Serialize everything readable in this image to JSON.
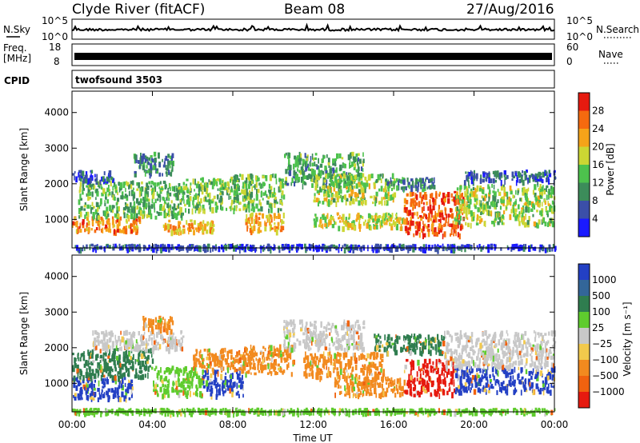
{
  "header": {
    "site": "Clyde River (fitACF)",
    "beam": "Beam 08",
    "date": "27/Aug/2016"
  },
  "noise_panel": {
    "left_label": "N.Sky",
    "right_label": "N.Search",
    "ytick_top": "10^5",
    "ytick_bottom": "10^0"
  },
  "freq_panel": {
    "label_line1": "Freq.",
    "label_line2": "[MHz]",
    "ytick_top": "18",
    "ytick_bottom": "8",
    "right_label": "Nave",
    "rtick_top": "60",
    "rtick_bottom": "0"
  },
  "cpid_panel": {
    "label": "CPID",
    "value": "twofsound 3503"
  },
  "colors": {
    "power_scale": [
      "#1a1aff",
      "#3b4fa8",
      "#3c8c5a",
      "#4dc24d",
      "#ccd633",
      "#f5a319",
      "#f56a0f",
      "#e61a0f"
    ],
    "velocity_scale": [
      "#2340c4",
      "#336699",
      "#2f7d4f",
      "#5fcc2e",
      "#c8c8c8",
      "#f2c94c",
      "#f28a1f",
      "#f0620f",
      "#e61a0f"
    ]
  },
  "chart_data": [
    {
      "type": "heatmap",
      "title": "",
      "ylabel": "Slant Range [km]",
      "ylim": [
        200,
        4600
      ],
      "yticks": [
        "1000",
        "2000",
        "3000",
        "4000"
      ],
      "xlim_hours": [
        0,
        24
      ],
      "colorbar_label": "Power [dB]",
      "colorbar_ticks": [
        "4",
        "8",
        "12",
        "16",
        "20",
        "24",
        "28"
      ],
      "colorbar_range": [
        0,
        32
      ],
      "bands": [
        {
          "t0": 0.0,
          "t1": 3.4,
          "r0": 700,
          "r1": 1100,
          "value": 24
        },
        {
          "t0": 0.3,
          "t1": 5.5,
          "r0": 1100,
          "r1": 2100,
          "value": 13
        },
        {
          "t0": 0.0,
          "t1": 2.0,
          "r0": 2100,
          "r1": 2400,
          "value": 6
        },
        {
          "t0": 3.0,
          "t1": 5.0,
          "r0": 2300,
          "r1": 2900,
          "value": 9
        },
        {
          "t0": 5.5,
          "t1": 8.2,
          "r0": 1300,
          "r1": 2200,
          "value": 15
        },
        {
          "t0": 4.5,
          "t1": 7.0,
          "r0": 650,
          "r1": 1000,
          "value": 22
        },
        {
          "t0": 8.6,
          "t1": 10.5,
          "r0": 700,
          "r1": 1200,
          "value": 22
        },
        {
          "t0": 8.0,
          "t1": 10.5,
          "r0": 1300,
          "r1": 2300,
          "value": 14
        },
        {
          "t0": 10.5,
          "t1": 14.5,
          "r0": 2000,
          "r1": 2900,
          "value": 12
        },
        {
          "t0": 12.0,
          "t1": 16.0,
          "r0": 1500,
          "r1": 2300,
          "value": 16
        },
        {
          "t0": 12.0,
          "t1": 16.5,
          "r0": 800,
          "r1": 1200,
          "value": 18
        },
        {
          "t0": 16.5,
          "t1": 19.5,
          "r0": 600,
          "r1": 1800,
          "value": 27
        },
        {
          "t0": 19.0,
          "t1": 24.0,
          "r0": 900,
          "r1": 2000,
          "value": 16
        },
        {
          "t0": 19.5,
          "t1": 24.0,
          "r0": 2100,
          "r1": 2400,
          "value": 7
        },
        {
          "t0": 15.5,
          "t1": 18.0,
          "r0": 1900,
          "r1": 2200,
          "value": 10
        },
        {
          "t0": 0.0,
          "t1": 24.0,
          "r0": 200,
          "r1": 320,
          "value": 5
        }
      ]
    },
    {
      "type": "heatmap",
      "title": "",
      "ylabel": "Slant Range [km]",
      "ylim": [
        200,
        4600
      ],
      "yticks": [
        "1000",
        "2000",
        "3000",
        "4000"
      ],
      "xlim_hours": [
        0,
        24
      ],
      "xticks": [
        "00:00",
        "04:00",
        "08:00",
        "12:00",
        "16:00",
        "20:00",
        "00:00"
      ],
      "xlabel": "Time UT",
      "colorbar_label": "Velocity [m s⁻¹]",
      "colorbar_ticks": [
        "1000",
        "500",
        "100",
        "25",
        "−25",
        "−100",
        "−500",
        "−1000"
      ],
      "bands": [
        {
          "t0": 0.0,
          "t1": 3.0,
          "r0": 600,
          "r1": 1200,
          "value": "blue"
        },
        {
          "t0": 0.0,
          "t1": 4.0,
          "r0": 1200,
          "r1": 2000,
          "value": "green"
        },
        {
          "t0": 1.0,
          "t1": 5.5,
          "r0": 2000,
          "r1": 2500,
          "value": "grey"
        },
        {
          "t0": 3.5,
          "t1": 5.0,
          "r0": 2500,
          "r1": 2900,
          "value": "orange"
        },
        {
          "t0": 4.0,
          "t1": 6.5,
          "r0": 700,
          "r1": 1500,
          "value": "lightgreen"
        },
        {
          "t0": 6.5,
          "t1": 8.5,
          "r0": 700,
          "r1": 1400,
          "value": "blue"
        },
        {
          "t0": 6.0,
          "t1": 9.0,
          "r0": 1400,
          "r1": 2000,
          "value": "orange"
        },
        {
          "t0": 8.5,
          "t1": 11.0,
          "r0": 1300,
          "r1": 2100,
          "value": "orange"
        },
        {
          "t0": 10.5,
          "t1": 14.5,
          "r0": 2000,
          "r1": 2800,
          "value": "grey"
        },
        {
          "t0": 11.5,
          "t1": 15.5,
          "r0": 1200,
          "r1": 1900,
          "value": "orange"
        },
        {
          "t0": 13.0,
          "t1": 16.5,
          "r0": 700,
          "r1": 1200,
          "value": "orange"
        },
        {
          "t0": 16.5,
          "t1": 19.0,
          "r0": 700,
          "r1": 1700,
          "value": "red"
        },
        {
          "t0": 19.0,
          "t1": 24.0,
          "r0": 800,
          "r1": 1500,
          "value": "blue"
        },
        {
          "t0": 18.5,
          "t1": 24.0,
          "r0": 1500,
          "r1": 2500,
          "value": "grey"
        },
        {
          "t0": 15.0,
          "t1": 18.5,
          "r0": 1900,
          "r1": 2400,
          "value": "green"
        },
        {
          "t0": 0.0,
          "t1": 24.0,
          "r0": 200,
          "r1": 320,
          "value": "lightgreen"
        }
      ]
    }
  ]
}
